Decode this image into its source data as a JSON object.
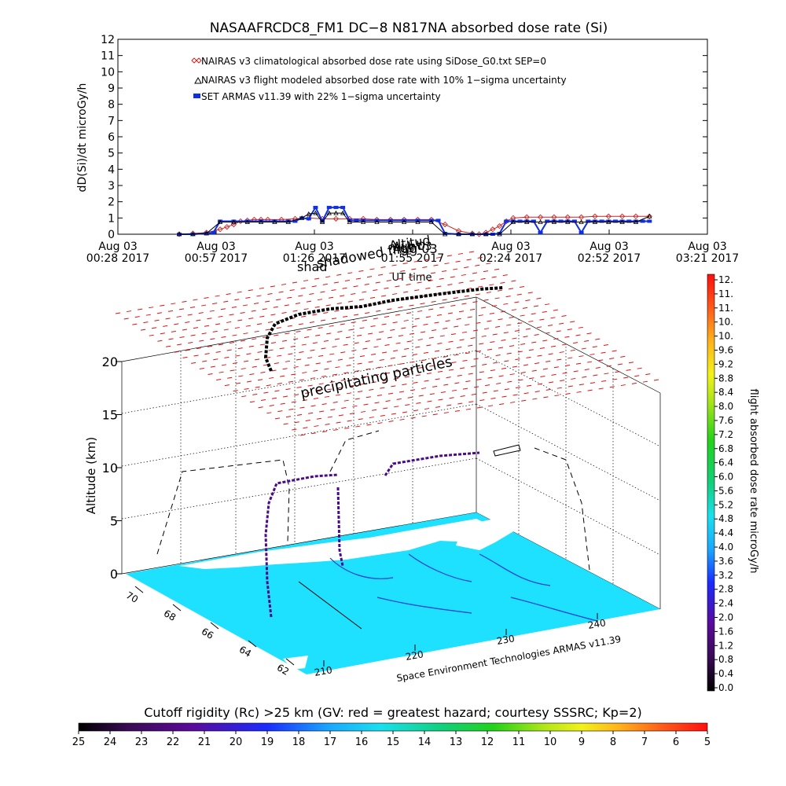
{
  "chart_data": [
    {
      "type": "line",
      "title": "NASAAFRCDC8_FM1 DC−8    N817NA absorbed dose rate (Si)",
      "ylabel": "dD(Si)/dt microGy/h",
      "ylim": [
        0,
        12
      ],
      "yticks": [
        "0",
        "1",
        "2",
        "3",
        "4",
        "5",
        "6",
        "7",
        "8",
        "9",
        "10",
        "11",
        "12"
      ],
      "xlim_minutes": [
        0,
        173
      ],
      "xticks": [
        {
          "month": "Aug 03",
          "time": "00:28 2017"
        },
        {
          "month": "Aug 03",
          "time": "00:57 2017"
        },
        {
          "month": "Aug 03",
          "time": "01:26 2017"
        },
        {
          "month": "Aug 03",
          "time": "01:55 2017"
        },
        {
          "month": "Aug 03",
          "time": "02:24 2017"
        },
        {
          "month": "Aug 03",
          "time": "02:52 2017"
        },
        {
          "month": "Aug 03",
          "time": "03:21 2017"
        }
      ],
      "legend": [
        {
          "label": "NAIRAS v3 climatological absorbed dose rate using SiDose_G0.txt SEP=0",
          "color": "#cc2222",
          "marker": "diamond"
        },
        {
          "label": "NAIRAS v3 flight modeled absorbed dose rate with 10% 1−sigma uncertainty",
          "color": "#000000",
          "marker": "triangle"
        },
        {
          "label": "SET ARMAS v11.39 with 22% 1−sigma uncertainty",
          "color": "#1030e0",
          "marker": "square"
        }
      ],
      "legend_position": "top-left",
      "annotations": [
        "Altitud",
        "Aug 03",
        "shadowed flight",
        "shad",
        "UT time"
      ],
      "series": [
        {
          "name": "NAIRAS v3 climatological absorbed dose rate using SiDose_G0.txt SEP=0",
          "color": "#cc2222",
          "x": [
            18,
            22,
            26,
            30,
            32,
            34,
            36,
            38,
            40,
            42,
            44,
            48,
            52,
            56,
            60,
            64,
            68,
            72,
            76,
            80,
            84,
            88,
            92,
            96,
            100,
            104,
            106,
            108,
            110,
            112,
            114,
            116,
            120,
            124,
            128,
            132,
            136,
            140,
            144,
            148,
            152,
            156
          ],
          "y": [
            0.0,
            0.05,
            0.1,
            0.3,
            0.45,
            0.6,
            0.8,
            0.85,
            0.9,
            0.9,
            0.9,
            0.9,
            0.95,
            1.0,
            0.95,
            0.95,
            0.95,
            0.95,
            0.9,
            0.9,
            0.9,
            0.9,
            0.9,
            0.6,
            0.2,
            0.05,
            0.0,
            0.1,
            0.3,
            0.5,
            0.8,
            1.0,
            1.05,
            1.05,
            1.05,
            1.05,
            1.05,
            1.1,
            1.1,
            1.1,
            1.1,
            1.1
          ]
        },
        {
          "name": "SET ARMAS v11.39 with 22% 1−sigma uncertainty",
          "color": "#1030e0",
          "x": [
            18,
            22,
            26,
            28,
            30,
            34,
            38,
            42,
            46,
            50,
            52,
            54,
            56,
            58,
            60,
            62,
            64,
            66,
            68,
            70,
            72,
            76,
            80,
            84,
            88,
            92,
            94,
            96,
            100,
            104,
            108,
            110,
            112,
            114,
            116,
            118,
            120,
            122,
            124,
            126,
            128,
            130,
            132,
            134,
            136,
            138,
            140,
            142,
            144,
            146,
            148,
            150,
            152,
            154,
            156
          ],
          "y": [
            0.0,
            0.0,
            0.05,
            0.1,
            0.8,
            0.8,
            0.8,
            0.8,
            0.8,
            0.8,
            0.8,
            1.0,
            0.95,
            1.65,
            0.8,
            1.65,
            1.65,
            1.65,
            0.85,
            0.85,
            0.85,
            0.85,
            0.85,
            0.85,
            0.85,
            0.85,
            0.85,
            0.05,
            0.0,
            0.0,
            0.0,
            0.0,
            0.05,
            0.8,
            0.8,
            0.8,
            0.8,
            0.8,
            0.1,
            0.8,
            0.8,
            0.8,
            0.8,
            0.8,
            0.1,
            0.8,
            0.8,
            0.8,
            0.8,
            0.8,
            0.8,
            0.8,
            0.8,
            0.8,
            0.8
          ]
        },
        {
          "name": "NAIRAS v3 flight modeled absorbed dose rate with 10% 1−sigma uncertainty",
          "color": "#000000",
          "x": [
            18,
            22,
            26,
            30,
            34,
            38,
            42,
            46,
            50,
            54,
            56,
            58,
            60,
            62,
            64,
            66,
            68,
            72,
            76,
            80,
            84,
            88,
            92,
            96,
            100,
            104,
            108,
            112,
            116,
            120,
            124,
            128,
            132,
            136,
            140,
            144,
            148,
            152,
            156
          ],
          "y": [
            0.0,
            0.0,
            0.05,
            0.75,
            0.75,
            0.75,
            0.75,
            0.75,
            0.75,
            1.0,
            1.25,
            1.3,
            0.75,
            1.3,
            1.3,
            1.3,
            0.75,
            0.75,
            0.75,
            0.75,
            0.75,
            0.75,
            0.75,
            0.0,
            0.0,
            0.0,
            0.0,
            0.0,
            0.75,
            0.75,
            0.75,
            0.75,
            0.75,
            0.75,
            0.75,
            0.75,
            0.75,
            0.75,
            1.1
          ]
        }
      ]
    },
    {
      "type": "surface-3d",
      "zlabel": "Altitude (km)",
      "zlim": [
        0,
        20
      ],
      "zticks": [
        "0",
        "5",
        "10",
        "15",
        "20"
      ],
      "latitude_ticks": [
        "70",
        "68",
        "66",
        "64",
        "62"
      ],
      "longitude_ticks": [
        "210",
        "220",
        "230",
        "240"
      ],
      "overlay_label": "precipitating particles",
      "credit": "Space Environment Technologies ARMAS v11.39",
      "map_colors": {
        "ocean": "#1ee0ff",
        "land": "#ffffff",
        "rivers": "#1a3cd6",
        "mesh": "#dd1111"
      }
    },
    {
      "type": "colorbar",
      "label": "flight absorbed dose rate microGy/h",
      "ticks": [
        "12.",
        "11.",
        "11.",
        "10.",
        "10.",
        "9.6",
        "9.2",
        "8.8",
        "8.4",
        "8.0",
        "7.6",
        "7.2",
        "6.8",
        "6.4",
        "6.0",
        "5.6",
        "5.2",
        "4.8",
        "4.4",
        "4.0",
        "3.6",
        "3.2",
        "2.8",
        "2.4",
        "2.0",
        "1.6",
        "1.2",
        "0.8",
        "0.4",
        "0.0"
      ]
    },
    {
      "type": "colorbar",
      "title": "Cutoff rigidity (Rc) >25 km (GV: red = greatest hazard; courtesy SSSRC; Kp=2)",
      "ticks": [
        "25",
        "24",
        "23",
        "22",
        "21",
        "20",
        "19",
        "18",
        "17",
        "16",
        "15",
        "14",
        "13",
        "12",
        "11",
        "10",
        "9",
        "8",
        "7",
        "6",
        "5"
      ]
    }
  ]
}
